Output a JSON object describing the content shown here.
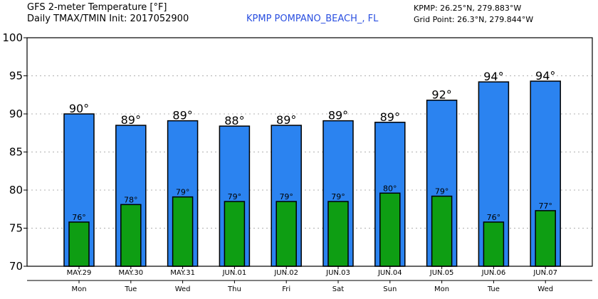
{
  "header": {
    "title_line1": "GFS 2-meter Temperature [°F]",
    "title_line2": "Daily TMAX/TMIN Init: 2017052900",
    "station": "KPMP POMPANO_BEACH_, FL",
    "station_coords": "KPMP: 26.25°N, 279.883°W",
    "grid_point": "Grid Point: 26.3°N, 279.844°W"
  },
  "colors": {
    "tmax_bar": "#2b83f0",
    "tmin_bar": "#0e9e13",
    "grid": "#b0b0b0"
  },
  "chart_data": {
    "type": "bar",
    "title": "GFS 2-meter Temperature [°F]",
    "ylim": [
      70,
      100
    ],
    "yticks": [
      70,
      75,
      80,
      85,
      90,
      95,
      100
    ],
    "grid": true,
    "categories": [
      "MAY.29",
      "MAY.30",
      "MAY.31",
      "JUN.01",
      "JUN.02",
      "JUN.03",
      "JUN.04",
      "JUN.05",
      "JUN.06",
      "JUN.07"
    ],
    "weekdays": [
      "Mon",
      "Tue",
      "Wed",
      "Thu",
      "Fri",
      "Sat",
      "Sun",
      "Mon",
      "Tue",
      "Wed"
    ],
    "series": [
      {
        "name": "TMAX",
        "values": [
          90.0,
          88.5,
          89.1,
          88.4,
          88.5,
          89.1,
          88.9,
          91.8,
          94.2,
          94.3
        ],
        "labels": [
          "90°",
          "89°",
          "89°",
          "88°",
          "89°",
          "89°",
          "89°",
          "92°",
          "94°",
          "94°"
        ]
      },
      {
        "name": "TMIN",
        "values": [
          75.8,
          78.1,
          79.1,
          78.5,
          78.5,
          78.5,
          79.6,
          79.2,
          75.8,
          77.3
        ],
        "labels": [
          "76°",
          "78°",
          "79°",
          "79°",
          "79°",
          "79°",
          "80°",
          "79°",
          "76°",
          "77°"
        ]
      }
    ]
  }
}
